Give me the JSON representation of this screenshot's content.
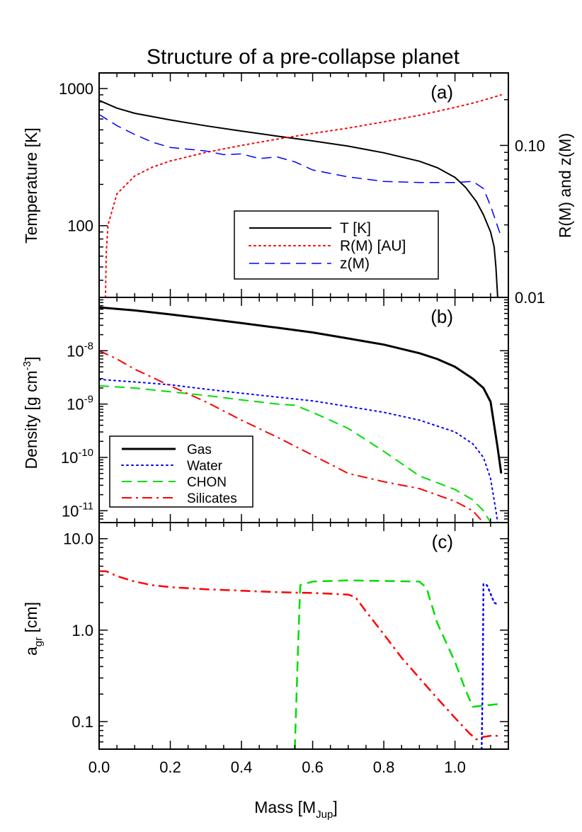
{
  "title": "Structure of a pre-collapse planet",
  "x_axis": {
    "label": "Mass [M",
    "label_sub": "Jup",
    "label_end": "]",
    "range": [
      0.0,
      1.15
    ],
    "ticks": [
      0.0,
      0.2,
      0.4,
      0.6,
      0.8,
      1.0
    ],
    "tick_labels": [
      "0.0",
      "0.2",
      "0.4",
      "0.6",
      "0.8",
      "1.0"
    ]
  },
  "colors": {
    "black": "#000000",
    "red": "#ff0000",
    "blue": "#0000ff",
    "green": "#00dd00"
  },
  "chart_data": [
    {
      "id": "a",
      "type": "line",
      "panel_label": "(a)",
      "ylabel": "Temperature [K]",
      "yscale": "log",
      "ylim": [
        30,
        1300
      ],
      "y_ticks": [
        100,
        1000
      ],
      "y_tick_labels": [
        "100",
        "1000"
      ],
      "y2label": "R(M) and z(M)",
      "y2scale": "log",
      "y2lim": [
        0.01,
        0.3
      ],
      "y2_ticks": [
        0.01,
        0.1
      ],
      "y2_tick_labels": [
        "0.01",
        "0.10"
      ],
      "legend": {
        "placement": "center-right"
      },
      "series": [
        {
          "name": "T [K]",
          "axis": "left",
          "color": "black",
          "style": "solid",
          "width": 2,
          "points": [
            [
              0,
              820
            ],
            [
              0.05,
              720
            ],
            [
              0.1,
              660
            ],
            [
              0.2,
              590
            ],
            [
              0.3,
              535
            ],
            [
              0.4,
              490
            ],
            [
              0.5,
              450
            ],
            [
              0.6,
              415
            ],
            [
              0.7,
              380
            ],
            [
              0.8,
              340
            ],
            [
              0.9,
              295
            ],
            [
              0.95,
              265
            ],
            [
              1.0,
              225
            ],
            [
              1.03,
              190
            ],
            [
              1.06,
              150
            ],
            [
              1.08,
              120
            ],
            [
              1.1,
              90
            ],
            [
              1.11,
              70
            ],
            [
              1.115,
              50
            ],
            [
              1.12,
              30
            ]
          ]
        },
        {
          "name": "R(M) [AU]",
          "axis": "right",
          "color": "red",
          "style": "dotted",
          "width": 2,
          "points": [
            [
              0.018,
              0.01
            ],
            [
              0.02,
              0.02
            ],
            [
              0.025,
              0.03
            ],
            [
              0.05,
              0.048
            ],
            [
              0.1,
              0.063
            ],
            [
              0.15,
              0.072
            ],
            [
              0.2,
              0.079
            ],
            [
              0.3,
              0.09
            ],
            [
              0.4,
              0.1
            ],
            [
              0.5,
              0.11
            ],
            [
              0.6,
              0.12
            ],
            [
              0.7,
              0.13
            ],
            [
              0.8,
              0.143
            ],
            [
              0.9,
              0.158
            ],
            [
              1.0,
              0.178
            ],
            [
              1.05,
              0.19
            ],
            [
              1.1,
              0.205
            ],
            [
              1.13,
              0.215
            ]
          ]
        },
        {
          "name": "z(M)",
          "axis": "right",
          "color": "blue",
          "style": "dashed",
          "width": 1.5,
          "points": [
            [
              0,
              0.16
            ],
            [
              0.05,
              0.135
            ],
            [
              0.1,
              0.118
            ],
            [
              0.15,
              0.105
            ],
            [
              0.2,
              0.097
            ],
            [
              0.3,
              0.092
            ],
            [
              0.35,
              0.087
            ],
            [
              0.4,
              0.088
            ],
            [
              0.45,
              0.082
            ],
            [
              0.5,
              0.084
            ],
            [
              0.55,
              0.078
            ],
            [
              0.6,
              0.069
            ],
            [
              0.7,
              0.062
            ],
            [
              0.8,
              0.058
            ],
            [
              0.9,
              0.057
            ],
            [
              1.0,
              0.057
            ],
            [
              1.05,
              0.058
            ],
            [
              1.08,
              0.052
            ],
            [
              1.1,
              0.04
            ],
            [
              1.13,
              0.025
            ]
          ]
        }
      ]
    },
    {
      "id": "b",
      "type": "line",
      "panel_label": "(b)",
      "ylabel": "Density [g cm",
      "ylabel_sup": "-3",
      "ylabel_end": "]",
      "yscale": "log",
      "ylim": [
        6e-12,
        1e-07
      ],
      "y_ticks": [
        1e-11,
        1e-10,
        1e-09,
        1e-08
      ],
      "y_tick_exps": [
        "-11",
        "-10",
        "-9",
        "-8"
      ],
      "legend": {
        "placement": "lower-left"
      },
      "series": [
        {
          "name": "Gas",
          "color": "black",
          "style": "solid",
          "width": 3,
          "points": [
            [
              0,
              6.5e-08
            ],
            [
              0.1,
              5.7e-08
            ],
            [
              0.2,
              4.8e-08
            ],
            [
              0.3,
              4e-08
            ],
            [
              0.4,
              3.3e-08
            ],
            [
              0.5,
              2.7e-08
            ],
            [
              0.6,
              2.2e-08
            ],
            [
              0.7,
              1.7e-08
            ],
            [
              0.8,
              1.3e-08
            ],
            [
              0.9,
              9e-09
            ],
            [
              0.95,
              7e-09
            ],
            [
              1.0,
              5e-09
            ],
            [
              1.05,
              3e-09
            ],
            [
              1.08,
              2e-09
            ],
            [
              1.1,
              1.1e-09
            ],
            [
              1.12,
              1.5e-10
            ],
            [
              1.13,
              5e-11
            ]
          ]
        },
        {
          "name": "Water",
          "color": "blue",
          "style": "dotted",
          "width": 2,
          "points": [
            [
              0,
              2.9e-09
            ],
            [
              0.1,
              2.6e-09
            ],
            [
              0.2,
              2.3e-09
            ],
            [
              0.3,
              1.9e-09
            ],
            [
              0.4,
              1.6e-09
            ],
            [
              0.5,
              1.35e-09
            ],
            [
              0.6,
              1.15e-09
            ],
            [
              0.7,
              9e-10
            ],
            [
              0.8,
              7e-10
            ],
            [
              0.9,
              5e-10
            ],
            [
              1.0,
              3e-10
            ],
            [
              1.05,
              1.8e-10
            ],
            [
              1.08,
              1e-10
            ],
            [
              1.1,
              4e-11
            ],
            [
              1.115,
              1e-11
            ],
            [
              1.12,
              6e-12
            ]
          ]
        },
        {
          "name": "CHON",
          "color": "green",
          "style": "dashed",
          "width": 2,
          "points": [
            [
              0,
              2.2e-09
            ],
            [
              0.1,
              2e-09
            ],
            [
              0.2,
              1.7e-09
            ],
            [
              0.3,
              1.45e-09
            ],
            [
              0.4,
              1.2e-09
            ],
            [
              0.5,
              1e-09
            ],
            [
              0.55,
              9.5e-10
            ],
            [
              0.6,
              7e-10
            ],
            [
              0.7,
              3.5e-10
            ],
            [
              0.8,
              1.3e-10
            ],
            [
              0.9,
              4.5e-11
            ],
            [
              1.0,
              2.5e-11
            ],
            [
              1.05,
              1.6e-11
            ],
            [
              1.08,
              1e-11
            ],
            [
              1.1,
              6e-12
            ]
          ]
        },
        {
          "name": "Silicates",
          "color": "red",
          "style": "dashdot",
          "width": 2,
          "points": [
            [
              0,
              1e-08
            ],
            [
              0.05,
              7e-09
            ],
            [
              0.1,
              4.5e-09
            ],
            [
              0.2,
              2.2e-09
            ],
            [
              0.3,
              1.1e-09
            ],
            [
              0.4,
              5e-10
            ],
            [
              0.5,
              2.4e-10
            ],
            [
              0.6,
              1.1e-10
            ],
            [
              0.7,
              5e-11
            ],
            [
              0.8,
              3.5e-11
            ],
            [
              0.9,
              2.6e-11
            ],
            [
              1.0,
              1.5e-11
            ],
            [
              1.05,
              1e-11
            ],
            [
              1.08,
              6e-12
            ]
          ]
        }
      ]
    },
    {
      "id": "c",
      "type": "line",
      "panel_label": "(c)",
      "ylabel": "a",
      "ylabel_sub": "gr",
      "ylabel_end": " [cm]",
      "yscale": "log",
      "ylim": [
        0.05,
        15
      ],
      "y_ticks": [
        0.1,
        1.0,
        10.0
      ],
      "y_tick_labels": [
        "0.1",
        "1.0",
        "10.0"
      ],
      "series": [
        {
          "name": "Silicates",
          "color": "red",
          "style": "dashdot",
          "width": 2.5,
          "points": [
            [
              0,
              4.4
            ],
            [
              0.02,
              4.4
            ],
            [
              0.05,
              3.9
            ],
            [
              0.1,
              3.4
            ],
            [
              0.15,
              3.1
            ],
            [
              0.2,
              2.95
            ],
            [
              0.3,
              2.8
            ],
            [
              0.4,
              2.7
            ],
            [
              0.5,
              2.6
            ],
            [
              0.6,
              2.55
            ],
            [
              0.7,
              2.45
            ],
            [
              0.72,
              2.3
            ],
            [
              0.75,
              1.6
            ],
            [
              0.8,
              0.9
            ],
            [
              0.85,
              0.5
            ],
            [
              0.9,
              0.3
            ],
            [
              0.95,
              0.18
            ],
            [
              1.0,
              0.11
            ],
            [
              1.04,
              0.075
            ],
            [
              1.06,
              0.064
            ],
            [
              1.08,
              0.068
            ],
            [
              1.1,
              0.07
            ],
            [
              1.13,
              0.07
            ]
          ]
        },
        {
          "name": "CHON",
          "color": "green",
          "style": "dashed",
          "width": 2.5,
          "points": [
            [
              0.55,
              0.05
            ],
            [
              0.558,
              0.5
            ],
            [
              0.565,
              3.1
            ],
            [
              0.6,
              3.4
            ],
            [
              0.7,
              3.5
            ],
            [
              0.8,
              3.45
            ],
            [
              0.9,
              3.4
            ],
            [
              0.92,
              2.9
            ],
            [
              0.95,
              1.2
            ],
            [
              1.0,
              0.45
            ],
            [
              1.03,
              0.22
            ],
            [
              1.05,
              0.145
            ],
            [
              1.08,
              0.15
            ],
            [
              1.12,
              0.155
            ]
          ]
        },
        {
          "name": "Water",
          "color": "blue",
          "style": "dotted",
          "width": 2.5,
          "points": [
            [
              1.075,
              0.05
            ],
            [
              1.078,
              0.3
            ],
            [
              1.08,
              3.2
            ],
            [
              1.09,
              3.1
            ],
            [
              1.1,
              2.5
            ],
            [
              1.11,
              2.0
            ],
            [
              1.12,
              1.9
            ]
          ]
        }
      ]
    }
  ]
}
